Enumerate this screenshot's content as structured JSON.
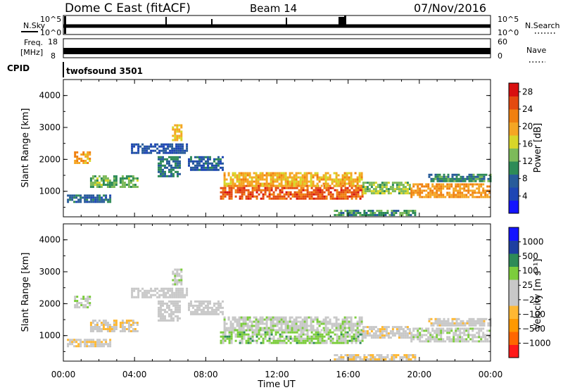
{
  "header": {
    "title": "Dome C East (fitACF)",
    "beam": "Beam 14",
    "date": "07/Nov/2016",
    "cpid_program": "twofsound 3501"
  },
  "panel_labels": {
    "nsky": "N.Sky",
    "nsearch": "N.Search",
    "freq": "Freq.",
    "freq_unit": "[MHz]",
    "nave": "Nave",
    "cpid": "CPID",
    "nsky_top": "10^5",
    "nsky_bottom": "10^0",
    "freq_top": "18",
    "freq_bottom": "8",
    "nave_top": "60",
    "nave_bottom": "0"
  },
  "colors": {
    "power_scale": [
      "#1414ff",
      "#1e46b4",
      "#285c9a",
      "#2e8b57",
      "#7dba5a",
      "#d8d62a",
      "#f5a623",
      "#f08010",
      "#e44a10",
      "#d81010"
    ],
    "velocity_scale": [
      "#ff1a1a",
      "#ff6600",
      "#ff9900",
      "#ffb833",
      "#c8c8c8",
      "#c8c8c8",
      "#7ccd3c",
      "#2e8b57",
      "#1e3fa0",
      "#1414ff"
    ]
  },
  "chart_data": [
    {
      "type": "heatmap",
      "panel": "power",
      "xlabel": "",
      "ylabel": "Slant Range [km]",
      "xlim": [
        0,
        24
      ],
      "ylim": [
        200,
        4500
      ],
      "yticks": [
        "1000",
        "2000",
        "3000",
        "4000"
      ],
      "xticks": [
        "00:00",
        "04:00",
        "08:00",
        "12:00",
        "16:00",
        "20:00",
        "00:00"
      ],
      "colorbar": {
        "label": "Power [dB]",
        "tick_labels": [
          "4",
          "8",
          "12",
          "16",
          "20",
          "24",
          "28"
        ],
        "range": [
          0,
          30
        ]
      },
      "regions": [
        {
          "t": [
            0.2,
            2.6
          ],
          "r": [
            650,
            900
          ],
          "value": 8
        },
        {
          "t": [
            0.6,
            1.5
          ],
          "r": [
            1900,
            2250
          ],
          "value": 20
        },
        {
          "t": [
            1.5,
            4.2
          ],
          "r": [
            1150,
            1500
          ],
          "value": 13
        },
        {
          "t": [
            3.8,
            7.0
          ],
          "r": [
            2200,
            2500
          ],
          "value": 6
        },
        {
          "t": [
            5.3,
            6.6
          ],
          "r": [
            1500,
            2100
          ],
          "value": 9
        },
        {
          "t": [
            6.1,
            6.6
          ],
          "r": [
            2600,
            3100
          ],
          "value": 18
        },
        {
          "t": [
            7.0,
            9.0
          ],
          "r": [
            1700,
            2100
          ],
          "value": 7
        },
        {
          "t": [
            8.8,
            16.8
          ],
          "r": [
            800,
            1200
          ],
          "value": 25
        },
        {
          "t": [
            9.0,
            16.8
          ],
          "r": [
            1200,
            1600
          ],
          "value": 19
        },
        {
          "t": [
            16.8,
            19.5
          ],
          "r": [
            950,
            1300
          ],
          "value": 14
        },
        {
          "t": [
            15.2,
            19.8
          ],
          "r": [
            280,
            420
          ],
          "value": 11
        },
        {
          "t": [
            19.5,
            24.0
          ],
          "r": [
            800,
            1250
          ],
          "value": 21
        },
        {
          "t": [
            20.5,
            24.0
          ],
          "r": [
            1350,
            1550
          ],
          "value": 10
        }
      ]
    },
    {
      "type": "heatmap",
      "panel": "velocity",
      "xlabel": "Time UT",
      "ylabel": "Slant Range [km]",
      "xlim": [
        0,
        24
      ],
      "ylim": [
        200,
        4500
      ],
      "yticks": [
        "1000",
        "2000",
        "3000",
        "4000"
      ],
      "xticks": [
        "00:00",
        "04:00",
        "08:00",
        "12:00",
        "16:00",
        "20:00",
        "00:00"
      ],
      "colorbar": {
        "label": "Velocity [m s⁻¹]",
        "tick_labels": [
          "1000",
          "500",
          "100",
          "25",
          "−25",
          "−100",
          "−500",
          "−1000"
        ],
        "range": [
          -1000,
          1000
        ]
      },
      "regions": [
        {
          "t": [
            0.2,
            2.6
          ],
          "r": [
            650,
            900
          ],
          "value": -150
        },
        {
          "t": [
            0.6,
            1.5
          ],
          "r": [
            1900,
            2250
          ],
          "value": 80
        },
        {
          "t": [
            1.5,
            4.2
          ],
          "r": [
            1150,
            1500
          ],
          "value": -120
        },
        {
          "t": [
            3.8,
            7.0
          ],
          "r": [
            2200,
            2500
          ],
          "value": 0
        },
        {
          "t": [
            5.3,
            6.6
          ],
          "r": [
            1500,
            2100
          ],
          "value": 0
        },
        {
          "t": [
            6.1,
            6.6
          ],
          "r": [
            2600,
            3100
          ],
          "value": 60
        },
        {
          "t": [
            7.0,
            9.0
          ],
          "r": [
            1700,
            2100
          ],
          "value": 0
        },
        {
          "t": [
            8.8,
            16.8
          ],
          "r": [
            800,
            1200
          ],
          "value": 250
        },
        {
          "t": [
            9.0,
            16.8
          ],
          "r": [
            1200,
            1600
          ],
          "value": 80
        },
        {
          "t": [
            16.8,
            19.5
          ],
          "r": [
            950,
            1300
          ],
          "value": -80
        },
        {
          "t": [
            15.2,
            19.8
          ],
          "r": [
            280,
            420
          ],
          "value": -150
        },
        {
          "t": [
            19.5,
            24.0
          ],
          "r": [
            800,
            1250
          ],
          "value": 90
        },
        {
          "t": [
            20.5,
            24.0
          ],
          "r": [
            1350,
            1550
          ],
          "value": -60
        }
      ]
    }
  ]
}
